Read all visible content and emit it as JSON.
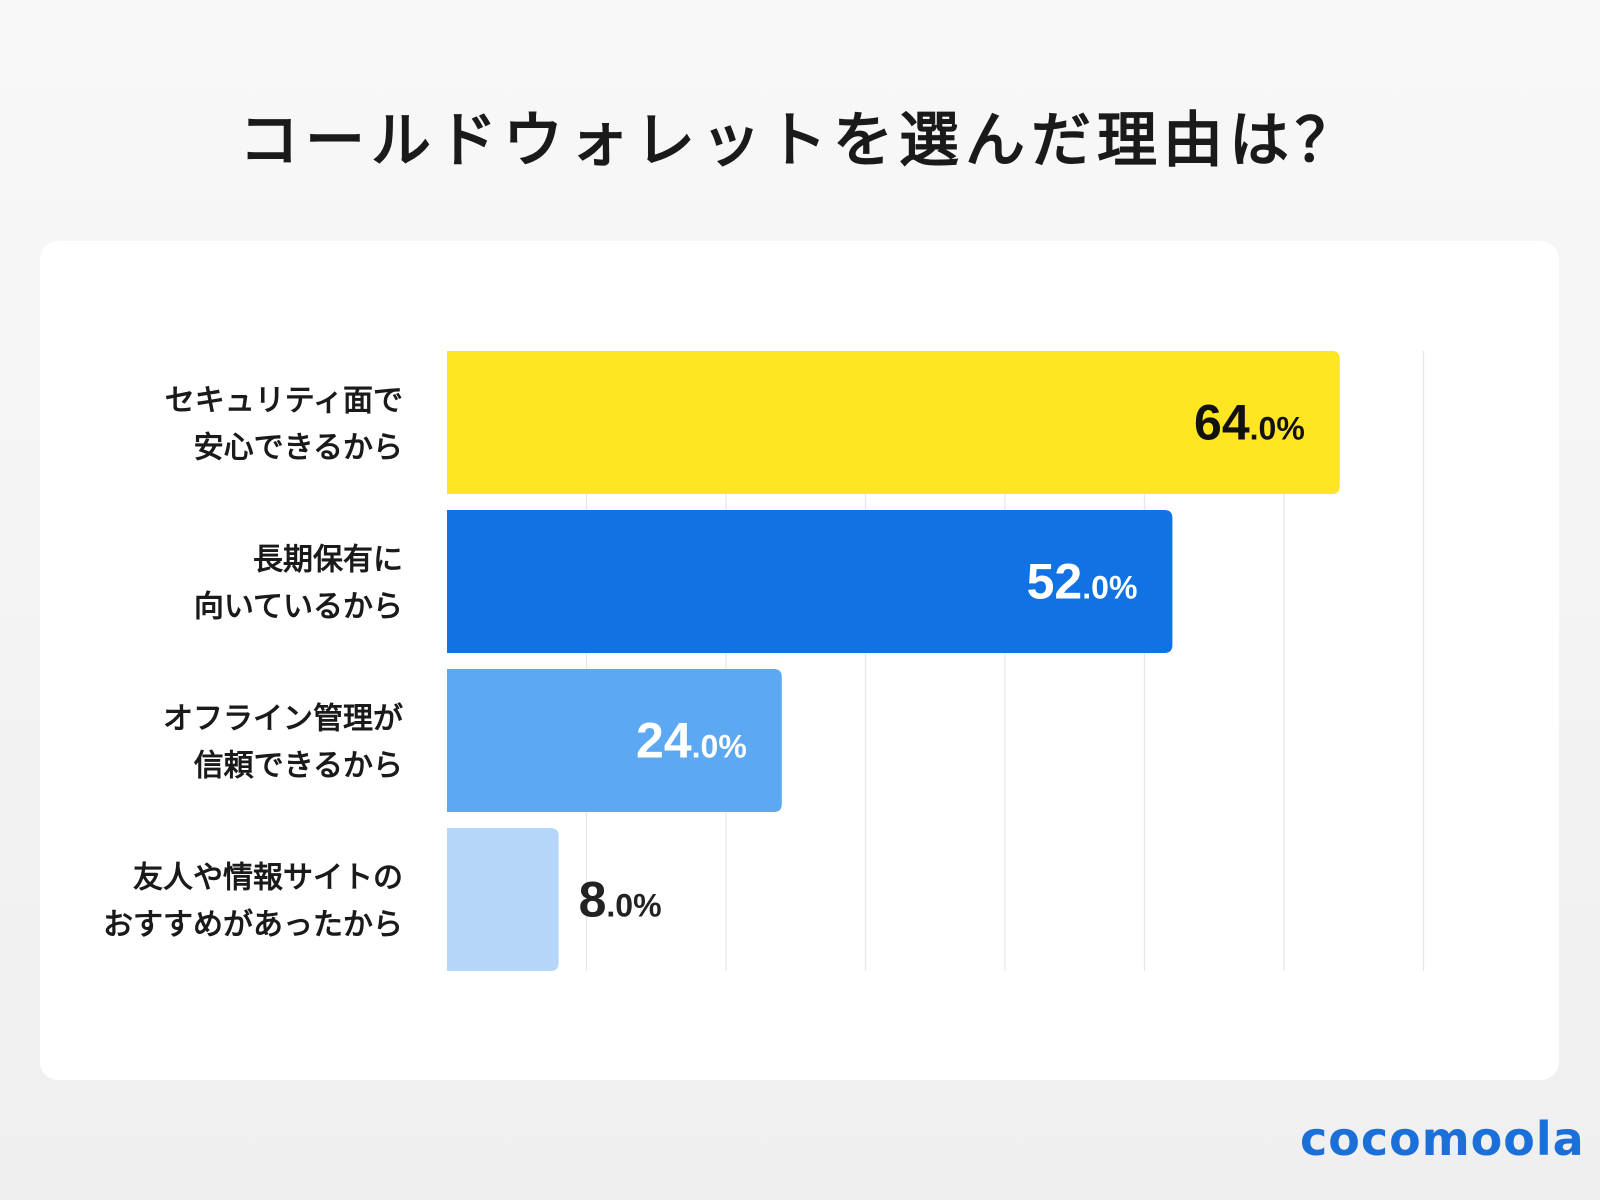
{
  "title": "コールドウォレットを選んだ理由は？",
  "logo": "cocomoola",
  "chart_data": {
    "type": "bar",
    "orientation": "horizontal",
    "categories": [
      [
        "セキュリティ面で",
        "安心できるから"
      ],
      [
        "長期保有に",
        "向いているから"
      ],
      [
        "オフライン管理が",
        "信頼できるから"
      ],
      [
        "友人や情報サイトの",
        "おすすめがあったから"
      ]
    ],
    "values": [
      64.0,
      52.0,
      24.0,
      8.0
    ],
    "labels": [
      "64.0%",
      "52.0%",
      "24.0%",
      "8.0%"
    ],
    "colors": [
      "#FFE522",
      "#1173E3",
      "#5CA8F2",
      "#B5D6F8"
    ],
    "label_colors": [
      "#111111",
      "#ffffff",
      "#ffffff",
      "#222222"
    ],
    "xlim": [
      0,
      70
    ],
    "grid": true,
    "grid_step": 10,
    "legend": "none"
  }
}
